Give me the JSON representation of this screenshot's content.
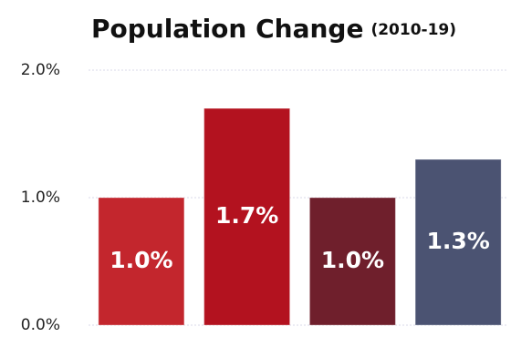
{
  "chart_data": {
    "type": "bar",
    "title": "Population Change",
    "subtitle": "(2010-19)",
    "values": [
      1.0,
      1.7,
      1.0,
      1.3
    ],
    "value_labels": [
      "1.0%",
      "1.7%",
      "1.0%",
      "1.3%"
    ],
    "colors": [
      "#c3262d",
      "#b3121f",
      "#6f1f2c",
      "#4b5372"
    ],
    "ylim": [
      0,
      2.0
    ],
    "yticks": [
      {
        "value": 0,
        "label": "0.0%"
      },
      {
        "value": 1.0,
        "label": "1.0%"
      },
      {
        "value": 2.0,
        "label": "2.0%"
      }
    ],
    "grid": true
  }
}
